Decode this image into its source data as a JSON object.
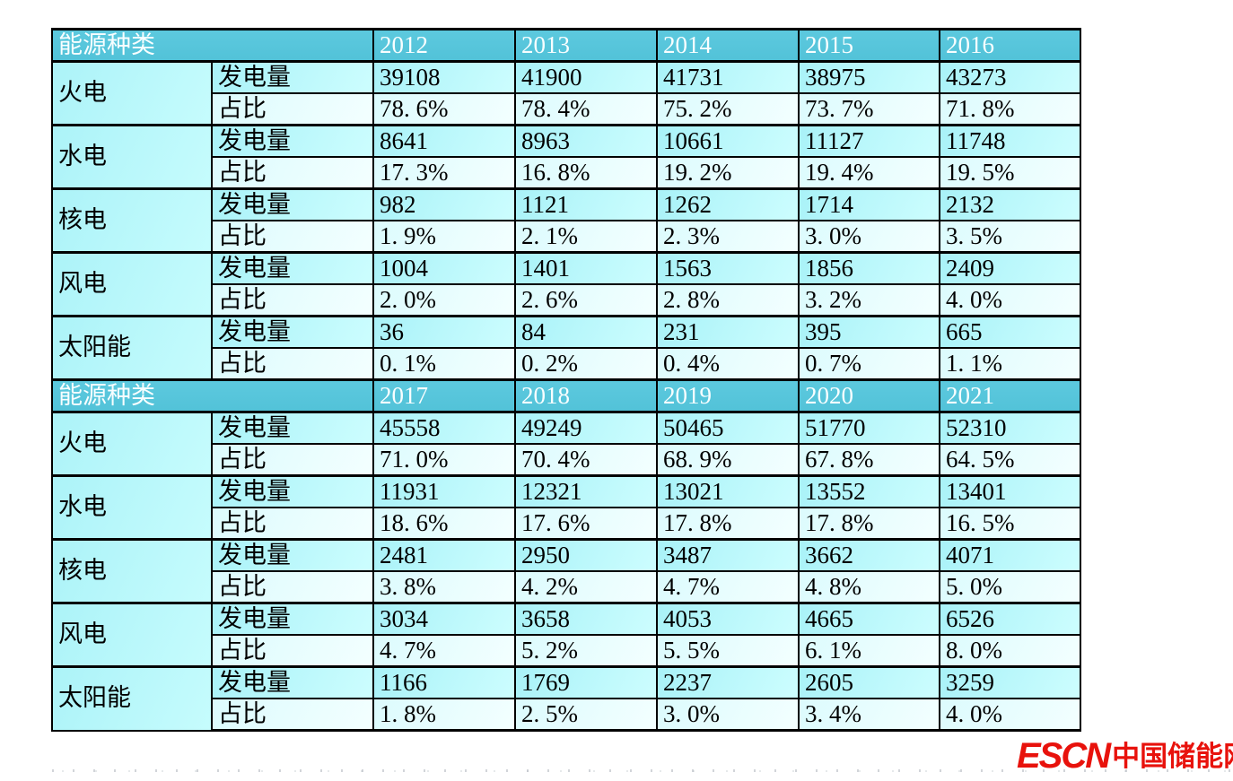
{
  "table": {
    "corner_label": "能源种类",
    "row_labels": {
      "generation": "发电量",
      "share": "占比"
    },
    "colors": {
      "header_bg": "#57c5da",
      "header_text": "#ffffff",
      "generation_row_bg": "#b3f7fa",
      "share_row_bg": "#defcfe",
      "border": "#000000"
    },
    "blocks": [
      {
        "years": [
          "2012",
          "2013",
          "2014",
          "2015",
          "2016"
        ],
        "rows": [
          {
            "category": "火电",
            "generation": [
              "39108",
              "41900",
              "41731",
              "38975",
              "43273"
            ],
            "share": [
              "78. 6%",
              "78. 4%",
              "75. 2%",
              "73. 7%",
              "71. 8%"
            ]
          },
          {
            "category": "水电",
            "generation": [
              "8641",
              "8963",
              "10661",
              "11127",
              "11748"
            ],
            "share": [
              "17. 3%",
              "16. 8%",
              "19. 2%",
              "19. 4%",
              "19. 5%"
            ]
          },
          {
            "category": "核电",
            "generation": [
              "982",
              "1121",
              "1262",
              "1714",
              "2132"
            ],
            "share": [
              "1. 9%",
              "2. 1%",
              "2. 3%",
              "3. 0%",
              "3. 5%"
            ]
          },
          {
            "category": "风电",
            "generation": [
              "1004",
              "1401",
              "1563",
              "1856",
              "2409"
            ],
            "share": [
              "2. 0%",
              "2. 6%",
              "2. 8%",
              "3. 2%",
              "4. 0%"
            ]
          },
          {
            "category": "太阳能",
            "generation": [
              "36",
              "84",
              "231",
              "395",
              "665"
            ],
            "share": [
              "0. 1%",
              "0. 2%",
              "0. 4%",
              "0. 7%",
              "1. 1%"
            ]
          }
        ]
      },
      {
        "years": [
          "2017",
          "2018",
          "2019",
          "2020",
          "2021"
        ],
        "rows": [
          {
            "category": "火电",
            "generation": [
              "45558",
              "49249",
              "50465",
              "51770",
              "52310"
            ],
            "share": [
              "71. 0%",
              "70. 4%",
              "68. 9%",
              "67. 8%",
              "64. 5%"
            ]
          },
          {
            "category": "水电",
            "generation": [
              "11931",
              "12321",
              "13021",
              "13552",
              "13401"
            ],
            "share": [
              "18. 6%",
              "17. 6%",
              "17. 8%",
              "17. 8%",
              "16. 5%"
            ]
          },
          {
            "category": "核电",
            "generation": [
              "2481",
              "2950",
              "3487",
              "3662",
              "4071"
            ],
            "share": [
              "3. 8%",
              "4. 2%",
              "4. 7%",
              "4. 8%",
              "5. 0%"
            ]
          },
          {
            "category": "风电",
            "generation": [
              "3034",
              "3658",
              "4053",
              "4665",
              "6526"
            ],
            "share": [
              "4. 7%",
              "5. 2%",
              "5. 5%",
              "6. 1%",
              "8. 0%"
            ]
          },
          {
            "category": "太阳能",
            "generation": [
              "1166",
              "1769",
              "2237",
              "2605",
              "3259"
            ],
            "share": [
              "1. 8%",
              "2. 5%",
              "3. 0%",
              "3. 4%",
              "4. 0%"
            ]
          }
        ]
      }
    ]
  },
  "logo": {
    "escn": "ESCN",
    "site": "中国储能网",
    "color": "#e8120c"
  },
  "chart_data": {
    "type": "table",
    "header_label": "能源种类",
    "metric_labels": [
      "发电量",
      "占比"
    ],
    "years": [
      2012,
      2013,
      2014,
      2015,
      2016,
      2017,
      2018,
      2019,
      2020,
      2021
    ],
    "series": [
      {
        "name": "火电",
        "generation": [
          39108,
          41900,
          41731,
          38975,
          43273,
          45558,
          49249,
          50465,
          51770,
          52310
        ],
        "share_pct": [
          78.6,
          78.4,
          75.2,
          73.7,
          71.8,
          71.0,
          70.4,
          68.9,
          67.8,
          64.5
        ]
      },
      {
        "name": "水电",
        "generation": [
          8641,
          8963,
          10661,
          11127,
          11748,
          11931,
          12321,
          13021,
          13552,
          13401
        ],
        "share_pct": [
          17.3,
          16.8,
          19.2,
          19.4,
          19.5,
          18.6,
          17.6,
          17.8,
          17.8,
          16.5
        ]
      },
      {
        "name": "核电",
        "generation": [
          982,
          1121,
          1262,
          1714,
          2132,
          2481,
          2950,
          3487,
          3662,
          4071
        ],
        "share_pct": [
          1.9,
          2.1,
          2.3,
          3.0,
          3.5,
          3.8,
          4.2,
          4.7,
          4.8,
          5.0
        ]
      },
      {
        "name": "风电",
        "generation": [
          1004,
          1401,
          1563,
          1856,
          2409,
          3034,
          3658,
          4053,
          4665,
          6526
        ],
        "share_pct": [
          2.0,
          2.6,
          2.8,
          3.2,
          4.0,
          4.7,
          5.2,
          5.5,
          6.1,
          8.0
        ]
      },
      {
        "name": "太阳能",
        "generation": [
          36,
          84,
          231,
          395,
          665,
          1166,
          1769,
          2237,
          2605,
          3259
        ],
        "share_pct": [
          0.1,
          0.2,
          0.4,
          0.7,
          1.1,
          1.8,
          2.5,
          3.0,
          3.4,
          4.0
        ]
      }
    ]
  }
}
